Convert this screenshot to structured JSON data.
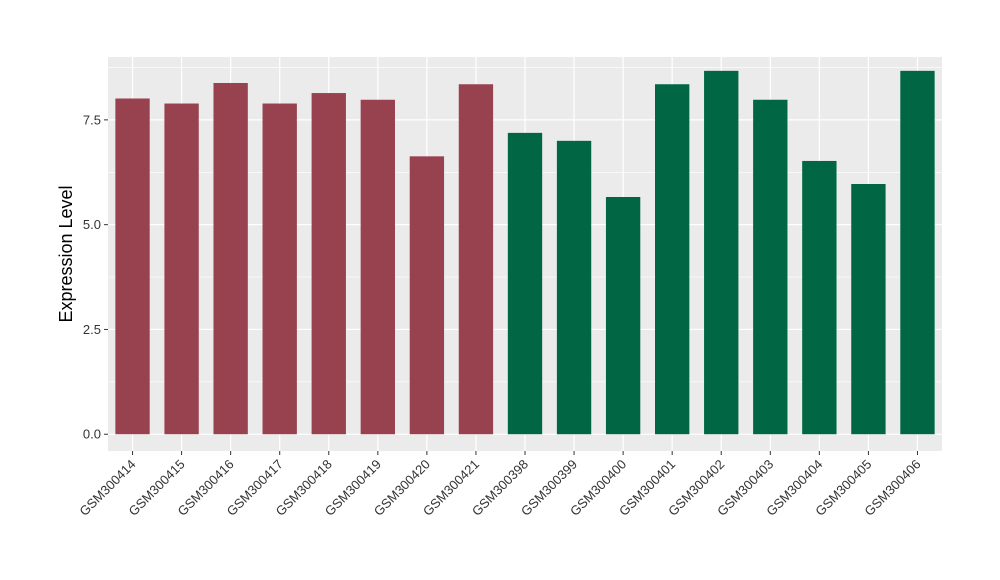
{
  "chart_data": {
    "type": "bar",
    "title": "",
    "xlabel": "",
    "ylabel": "Expression Level",
    "ylim": [
      -0.4,
      9.0
    ],
    "yticks": [
      0.0,
      2.5,
      5.0,
      7.5
    ],
    "ytick_labels": [
      "0.0",
      "2.5",
      "5.0",
      "7.5"
    ],
    "grid": true,
    "legend": "none",
    "categories": [
      "GSM300414",
      "GSM300415",
      "GSM300416",
      "GSM300417",
      "GSM300418",
      "GSM300419",
      "GSM300420",
      "GSM300421",
      "GSM300398",
      "GSM300399",
      "GSM300400",
      "GSM300401",
      "GSM300402",
      "GSM300403",
      "GSM300404",
      "GSM300405",
      "GSM300406"
    ],
    "values": [
      8.01,
      7.89,
      8.38,
      7.89,
      8.14,
      7.98,
      6.63,
      8.35,
      7.19,
      7.0,
      5.66,
      8.35,
      8.67,
      7.98,
      6.52,
      5.97,
      8.67
    ],
    "colors": [
      "#99424f",
      "#99424f",
      "#99424f",
      "#99424f",
      "#99424f",
      "#99424f",
      "#99424f",
      "#99424f",
      "#006644",
      "#006644",
      "#006644",
      "#006644",
      "#006644",
      "#006644",
      "#006644",
      "#006644",
      "#006644"
    ],
    "panel_background": "#ebebeb",
    "gridline_color": "#ffffff"
  }
}
